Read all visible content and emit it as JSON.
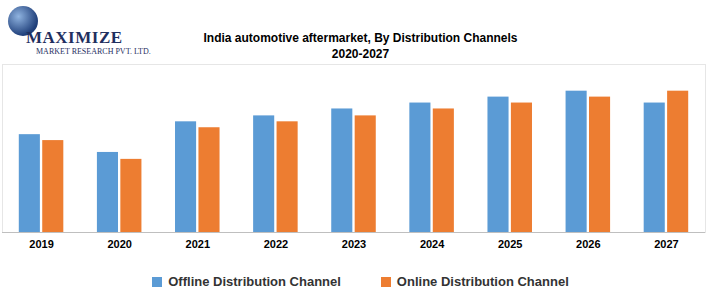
{
  "chart_data": {
    "type": "bar",
    "title": "India automotive aftermarket, By Distribution Channels",
    "subtitle": "2020-2027",
    "annotations": [
      "MAXIMIZE",
      "MARKET RESEARCH PVT. LTD."
    ],
    "categories": [
      "2019",
      "2020",
      "2021",
      "2022",
      "2023",
      "2024",
      "2025",
      "2026",
      "2027"
    ],
    "series": [
      {
        "name": "Offline Distribution Channel",
        "color": "#5b9bd5",
        "values": [
          99,
          81,
          112,
          118,
          125,
          131,
          137,
          143,
          131
        ]
      },
      {
        "name": "Online Distribution Channel",
        "color": "#ed7d31",
        "values": [
          93,
          74,
          106,
          112,
          118,
          125,
          131,
          137,
          143
        ]
      }
    ],
    "ylim": [
      0,
      170
    ],
    "grid": false,
    "legend": "bottom",
    "tick_labels": "x"
  }
}
